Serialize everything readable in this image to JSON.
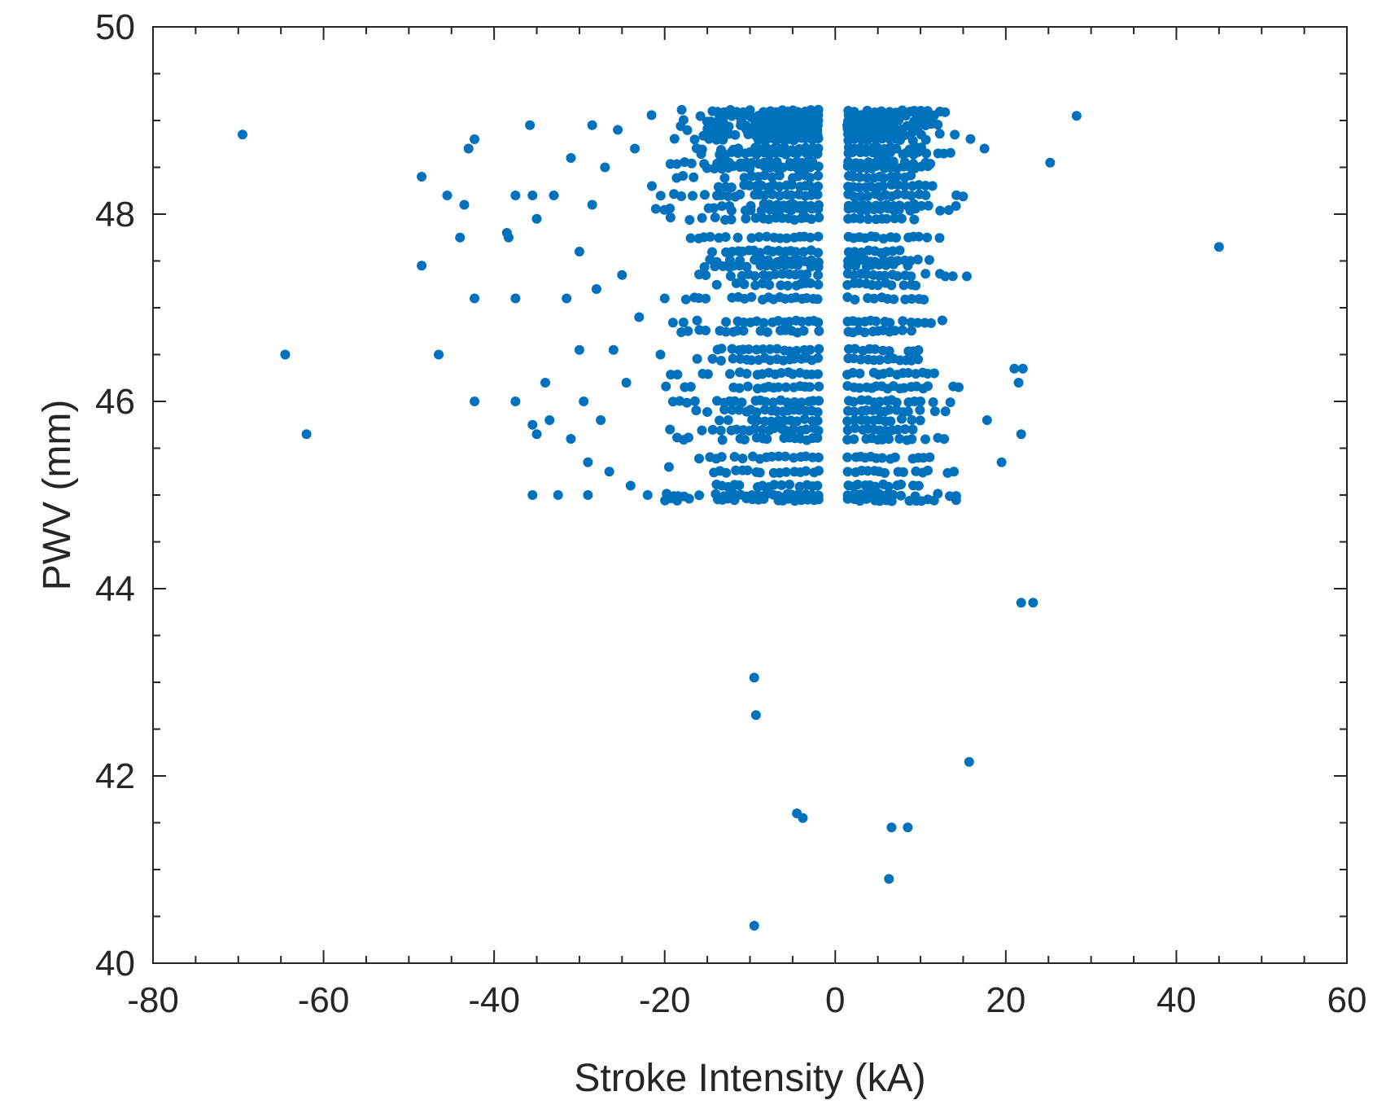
{
  "chart_data": {
    "type": "scatter",
    "title": "",
    "xlabel": "Stroke Intensity (kA)",
    "ylabel": "PWV (mm)",
    "xlim": [
      -80,
      60
    ],
    "ylim": [
      40,
      50
    ],
    "xticks": [
      -80,
      -60,
      -40,
      -20,
      0,
      20,
      40,
      60
    ],
    "yticks": [
      40,
      42,
      44,
      46,
      48,
      50
    ],
    "xtick_labels": [
      "-80",
      "-60",
      "-40",
      "-20",
      "0",
      "20",
      "40",
      "60"
    ],
    "ytick_labels": [
      "40",
      "42",
      "44",
      "46",
      "48",
      "50"
    ],
    "grid": false,
    "legend": "none",
    "marker_color": "#0072BD",
    "series": [
      {
        "points": [
          [
            -69.5,
            48.85
          ],
          [
            -64.5,
            46.5
          ],
          [
            -62,
            45.65
          ],
          [
            -48.5,
            48.4
          ],
          [
            -48.5,
            47.45
          ],
          [
            -46.5,
            46.5
          ],
          [
            -45.5,
            48.2
          ],
          [
            -44,
            47.75
          ],
          [
            -43.5,
            48.1
          ],
          [
            -43,
            48.7
          ],
          [
            -42.3,
            48.8
          ],
          [
            -42.3,
            47.1
          ],
          [
            -42.3,
            46
          ],
          [
            -38.5,
            47.8
          ],
          [
            -38.3,
            47.75
          ],
          [
            -37.5,
            48.2
          ],
          [
            -37.5,
            47.1
          ],
          [
            -37.5,
            46
          ],
          [
            -35.8,
            48.95
          ],
          [
            -35.5,
            48.2
          ],
          [
            -35,
            47.95
          ],
          [
            -35.5,
            45.75
          ],
          [
            -35,
            45.65
          ],
          [
            -35.5,
            45
          ],
          [
            -34,
            46.2
          ],
          [
            -33.5,
            45.8
          ],
          [
            -33,
            48.2
          ],
          [
            -32.5,
            45
          ],
          [
            -31.5,
            47.1
          ],
          [
            -31,
            48.6
          ],
          [
            -31,
            45.6
          ],
          [
            -30,
            47.6
          ],
          [
            -30,
            46.55
          ],
          [
            -29.5,
            46
          ],
          [
            -29,
            45.35
          ],
          [
            -29,
            45
          ],
          [
            -28.5,
            48.95
          ],
          [
            -28.5,
            48.1
          ],
          [
            -28,
            47.2
          ],
          [
            -27.5,
            45.8
          ],
          [
            -27,
            48.5
          ],
          [
            -26.5,
            45.25
          ],
          [
            -26,
            46.55
          ],
          [
            -25.5,
            48.9
          ],
          [
            -25,
            47.35
          ],
          [
            -24.5,
            46.2
          ],
          [
            -24,
            45.1
          ],
          [
            -23.5,
            48.7
          ],
          [
            -23,
            46.9
          ],
          [
            -22,
            45
          ],
          [
            -21.5,
            48.3
          ],
          [
            -20.5,
            46.5
          ],
          [
            -20,
            47.1
          ],
          [
            -19.5,
            45.3
          ],
          [
            -9.5,
            43.05
          ],
          [
            -9.3,
            42.65
          ],
          [
            -9.5,
            40.4
          ],
          [
            -4.5,
            41.6
          ],
          [
            -3.8,
            41.55
          ],
          [
            6.3,
            40.9
          ],
          [
            6.6,
            41.45
          ],
          [
            8.5,
            41.45
          ],
          [
            15.7,
            42.15
          ],
          [
            17.5,
            48.7
          ],
          [
            17.8,
            45.8
          ],
          [
            19.5,
            45.35
          ],
          [
            21,
            46.35
          ],
          [
            21.5,
            46.2
          ],
          [
            22,
            46.35
          ],
          [
            21.8,
            45.65
          ],
          [
            21.8,
            43.85
          ],
          [
            23.2,
            43.85
          ],
          [
            25.2,
            48.55
          ],
          [
            28.3,
            49.05
          ],
          [
            45,
            47.65
          ]
        ]
      }
    ],
    "band_rows": [
      49.1,
      49.05,
      49.0,
      48.95,
      48.9,
      48.85,
      48.8,
      48.7,
      48.65,
      48.55,
      48.5,
      48.4,
      48.3,
      48.2,
      48.1,
      48.05,
      47.95,
      47.75,
      47.6,
      47.5,
      47.45,
      47.35,
      47.25,
      47.1,
      46.85,
      46.75,
      46.55,
      46.45,
      46.3,
      46.15,
      46.0,
      45.9,
      45.8,
      45.7,
      45.6,
      45.4,
      45.25,
      45.1,
      45.0,
      44.95
    ]
  }
}
